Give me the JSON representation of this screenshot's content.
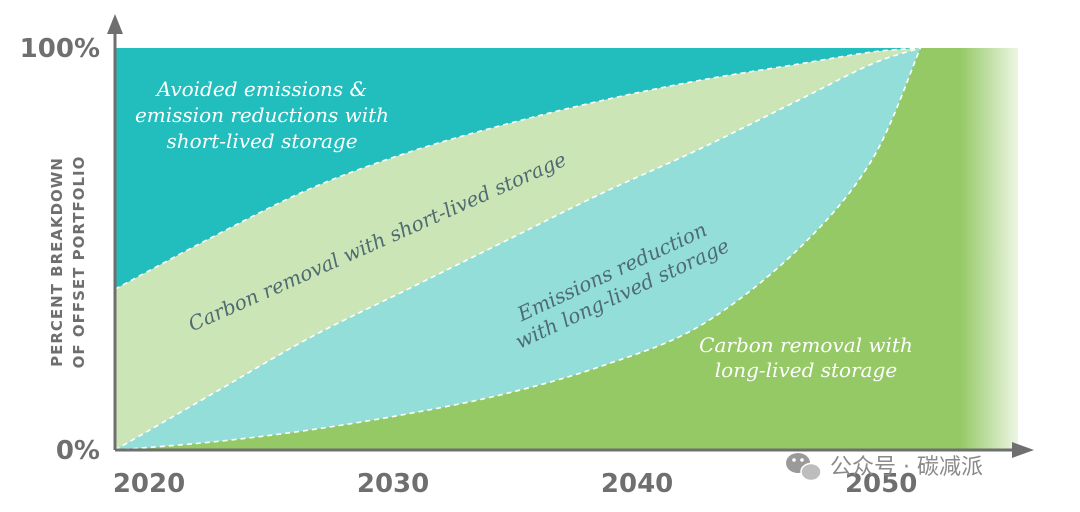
{
  "chart_data": {
    "type": "area",
    "title": "",
    "ylabel_lines": [
      "PERCENT BREAKDOWN",
      "OF OFFSET PORTFOLIO"
    ],
    "x_ticks": [
      "2020",
      "2030",
      "2040",
      "2050"
    ],
    "y_ticks": [
      "0%",
      "100%"
    ],
    "xlim": [
      2020,
      2053
    ],
    "ylim": [
      0,
      100
    ],
    "x": [
      2020,
      2024,
      2028,
      2032,
      2036,
      2040,
      2044,
      2048,
      2051,
      2053
    ],
    "series": [
      {
        "key": "cr_long",
        "labels": [
          "Carbon removal with",
          "long-lived storage"
        ],
        "color": "#95c965",
        "label_color": "#ffffff",
        "values": [
          0,
          2,
          5,
          9,
          14,
          21,
          31,
          50,
          72,
          100
        ]
      },
      {
        "key": "er_long",
        "labels": [
          "Emissions reduction",
          "with long-lived storage"
        ],
        "color": "#93ded8",
        "label_color": "#4f6b72",
        "values": [
          0,
          14,
          28,
          40,
          52,
          64,
          75,
          87,
          96,
          100
        ]
      },
      {
        "key": "cr_short",
        "labels": [
          "Carbon removal with short-lived storage"
        ],
        "color": "#cce5b6",
        "label_color": "#4f6b72",
        "values": [
          40,
          53,
          65,
          74,
          81,
          87,
          92,
          96,
          99,
          100
        ]
      },
      {
        "key": "avoided",
        "labels": [
          "Avoided emissions &",
          "emission reductions with",
          "short-lived storage"
        ],
        "color": "#22bdbd",
        "label_color": "#ffffff",
        "values": [
          100,
          100,
          100,
          100,
          100,
          100,
          100,
          100,
          100,
          100
        ]
      }
    ]
  },
  "watermark": {
    "text": "公众号 · 碳减派",
    "icon": "wechat-icon"
  }
}
